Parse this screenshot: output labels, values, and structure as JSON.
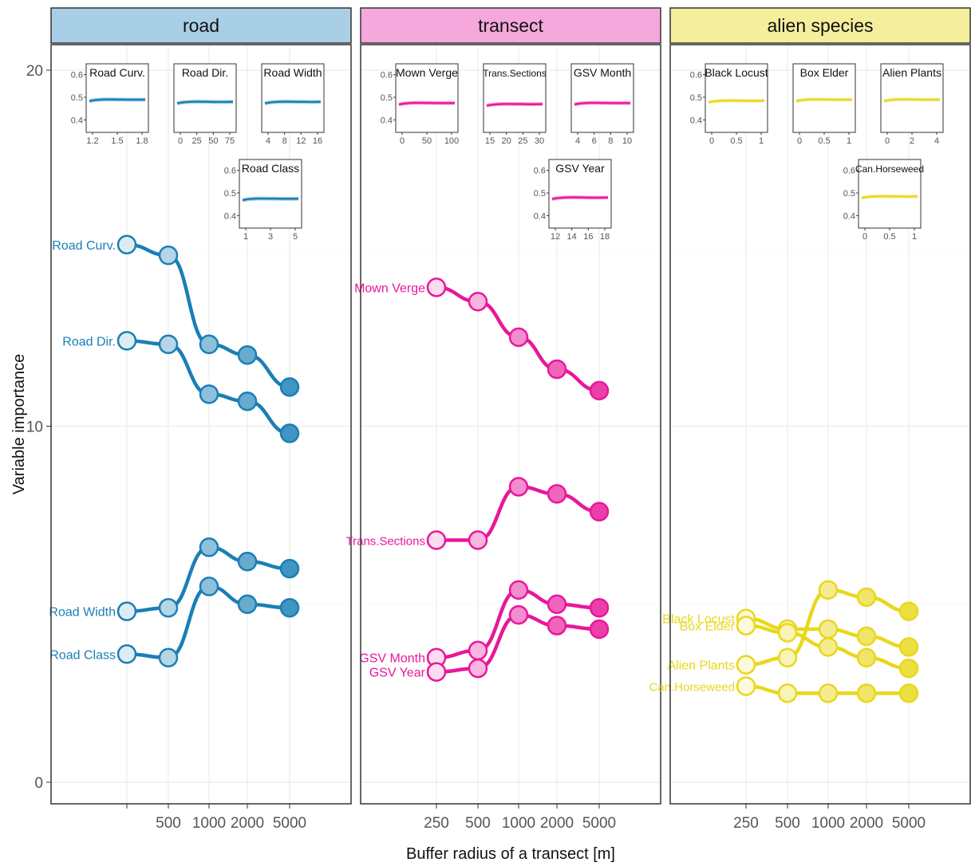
{
  "chart_data": {
    "type": "line",
    "xlabel": "Buffer radius of a transect [m]",
    "ylabel": "Variable importance",
    "ylim": [
      0,
      20
    ],
    "yticks": [
      "0",
      "10",
      "20"
    ],
    "x_tick_labels": [
      "250",
      "500",
      "1000",
      "2000",
      "5000"
    ],
    "x_values": [
      250,
      500,
      1000,
      2000,
      5000
    ],
    "grid": true,
    "panels": [
      {
        "title": "road",
        "color": "#1a7fb5",
        "strip_color": "#a9cfe6",
        "x_tick_labels_shown": [
          "500",
          "1000",
          "2000",
          "5000"
        ],
        "series": [
          {
            "name": "Road Curv.",
            "values": [
              15.1,
              14.8,
              12.3,
              12.0,
              11.1
            ]
          },
          {
            "name": "Road Dir.",
            "values": [
              12.4,
              12.3,
              10.9,
              10.7,
              9.8
            ]
          },
          {
            "name": "Road Width",
            "values": [
              4.8,
              4.9,
              6.6,
              6.2,
              6.0
            ]
          },
          {
            "name": "Road Class",
            "values": [
              3.6,
              3.5,
              5.5,
              5.0,
              4.9
            ]
          }
        ],
        "insets": [
          {
            "title": "Road Curv.",
            "xticks": [
              "1.2",
              "1.5",
              "1.8"
            ],
            "y": 0.49
          },
          {
            "title": "Road Dir.",
            "xticks": [
              "0",
              "25",
              "50",
              "75"
            ],
            "y": 0.48
          },
          {
            "title": "Road Width",
            "xticks": [
              "4",
              "8",
              "12",
              "16"
            ],
            "y": 0.48
          },
          {
            "title": "Road Class",
            "xticks": [
              "1",
              "3",
              "5"
            ],
            "y": 0.475
          }
        ]
      },
      {
        "title": "transect",
        "color": "#e8179a",
        "strip_color": "#f5a8dc",
        "x_tick_labels_shown": [
          "250",
          "500",
          "1000",
          "2000",
          "5000"
        ],
        "series": [
          {
            "name": "Mown Verge",
            "values": [
              13.9,
              13.5,
              12.5,
              11.6,
              11.0
            ]
          },
          {
            "name": "Trans.Sections",
            "values": [
              6.8,
              6.8,
              8.3,
              8.1,
              7.6
            ]
          },
          {
            "name": "GSV Month",
            "values": [
              3.5,
              3.7,
              5.4,
              5.0,
              4.9
            ]
          },
          {
            "name": "GSV Year",
            "values": [
              3.1,
              3.2,
              4.7,
              4.4,
              4.3
            ]
          }
        ],
        "insets": [
          {
            "title": "Mown Verge",
            "xticks": [
              "0",
              "50",
              "100"
            ],
            "y": 0.475
          },
          {
            "title": "Trans.Sections",
            "xticks": [
              "15",
              "20",
              "25",
              "30"
            ],
            "y": 0.47
          },
          {
            "title": "GSV Month",
            "xticks": [
              "4",
              "6",
              "8",
              "10"
            ],
            "y": 0.475
          },
          {
            "title": "GSV Year",
            "xticks": [
              "12",
              "14",
              "16",
              "18"
            ],
            "y": 0.48
          }
        ]
      },
      {
        "title": "alien species",
        "color": "#e8d81a",
        "strip_color": "#f5ee9c",
        "x_tick_labels_shown": [
          "250",
          "500",
          "1000",
          "2000",
          "5000"
        ],
        "series": [
          {
            "name": "Black Locust",
            "values": [
              4.6,
              4.3,
              4.3,
              4.1,
              3.8
            ]
          },
          {
            "name": "Box Elder",
            "values": [
              4.4,
              4.2,
              3.8,
              3.5,
              3.2
            ]
          },
          {
            "name": "Alien Plants",
            "values": [
              3.3,
              3.5,
              5.4,
              5.2,
              4.8
            ]
          },
          {
            "name": "Can.Horseweed",
            "values": [
              2.7,
              2.5,
              2.5,
              2.5,
              2.5
            ]
          }
        ],
        "insets": [
          {
            "title": "Black Locust",
            "xticks": [
              "0",
              "0.5",
              "1"
            ],
            "y": 0.485
          },
          {
            "title": "Box Elder",
            "xticks": [
              "0",
              "0.5",
              "1"
            ],
            "y": 0.49
          },
          {
            "title": "Alien Plants",
            "xticks": [
              "0",
              "2",
              "4"
            ],
            "y": 0.49
          },
          {
            "title": "Can.Horseweed",
            "xticks": [
              "0",
              "0.5",
              "1"
            ],
            "y": 0.485
          }
        ]
      }
    ],
    "inset_yticks": [
      "0.6",
      "0.5",
      "0.4"
    ]
  }
}
